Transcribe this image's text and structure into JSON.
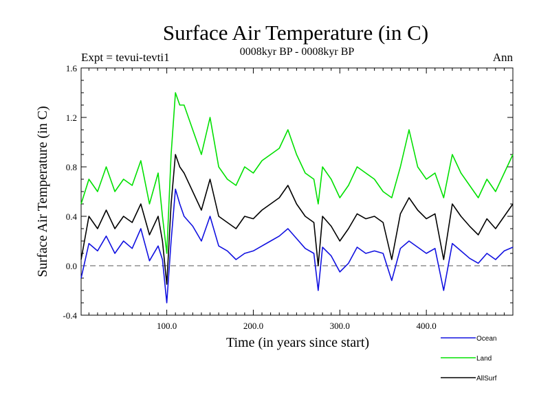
{
  "chart_data": {
    "type": "line",
    "title": "Surface Air Temperature (in C)",
    "subtitle": "0008kyr BP - 0008kyr BP",
    "left_label": "Expt = tevui-tevti1",
    "right_label": "Ann",
    "xlabel": "Time (in years since start)",
    "ylabel": "Surface Air Temperature (in C)",
    "xlim": [
      1,
      500
    ],
    "ylim": [
      -0.4,
      1.6
    ],
    "yticks": [
      -0.4,
      0.0,
      0.4,
      0.8,
      1.2,
      1.6
    ],
    "ytick_labels": [
      "-0.4",
      "0.0",
      "0.4",
      "0.8",
      "1.2",
      "1.6"
    ],
    "xticks": [
      100,
      200,
      300,
      400
    ],
    "xtick_labels": [
      "100.0",
      "200.0",
      "300.0",
      "400.0"
    ],
    "minor_x_step": 10,
    "minor_y_step": 0.1,
    "zero_line": {
      "value": 0.0,
      "style": "dashed"
    },
    "legend_position": "below-right",
    "series": [
      {
        "name": "Ocean",
        "color": "#1010e0",
        "x": [
          1,
          10,
          20,
          30,
          40,
          50,
          60,
          70,
          80,
          90,
          95,
          100,
          105,
          110,
          115,
          120,
          130,
          140,
          150,
          160,
          170,
          180,
          190,
          200,
          210,
          220,
          230,
          240,
          250,
          260,
          270,
          275,
          280,
          290,
          300,
          310,
          320,
          330,
          340,
          350,
          360,
          370,
          380,
          390,
          400,
          410,
          420,
          430,
          440,
          450,
          460,
          470,
          480,
          490,
          500
        ],
        "values": [
          -0.1,
          0.18,
          0.12,
          0.24,
          0.1,
          0.2,
          0.14,
          0.3,
          0.04,
          0.16,
          0.05,
          -0.3,
          0.2,
          0.62,
          0.5,
          0.4,
          0.32,
          0.2,
          0.4,
          0.16,
          0.12,
          0.05,
          0.1,
          0.12,
          0.16,
          0.2,
          0.24,
          0.3,
          0.22,
          0.14,
          0.1,
          -0.2,
          0.15,
          0.08,
          -0.05,
          0.02,
          0.15,
          0.1,
          0.12,
          0.1,
          -0.12,
          0.14,
          0.2,
          0.15,
          0.1,
          0.14,
          -0.2,
          0.18,
          0.12,
          0.06,
          0.02,
          0.1,
          0.05,
          0.12,
          0.15
        ]
      },
      {
        "name": "Land",
        "color": "#00e000",
        "x": [
          1,
          10,
          20,
          30,
          40,
          50,
          60,
          70,
          80,
          90,
          95,
          100,
          105,
          110,
          115,
          120,
          130,
          140,
          150,
          160,
          170,
          180,
          190,
          200,
          210,
          220,
          230,
          240,
          250,
          260,
          270,
          275,
          280,
          290,
          300,
          310,
          320,
          330,
          340,
          350,
          360,
          370,
          380,
          390,
          400,
          410,
          420,
          430,
          440,
          450,
          460,
          470,
          480,
          490,
          500
        ],
        "values": [
          0.5,
          0.7,
          0.6,
          0.8,
          0.6,
          0.7,
          0.65,
          0.85,
          0.5,
          0.75,
          0.4,
          0.1,
          0.9,
          1.4,
          1.3,
          1.3,
          1.1,
          0.9,
          1.2,
          0.8,
          0.7,
          0.65,
          0.8,
          0.75,
          0.85,
          0.9,
          0.95,
          1.1,
          0.9,
          0.75,
          0.7,
          0.5,
          0.8,
          0.7,
          0.55,
          0.65,
          0.8,
          0.75,
          0.7,
          0.6,
          0.55,
          0.8,
          1.1,
          0.8,
          0.7,
          0.75,
          0.55,
          0.9,
          0.75,
          0.65,
          0.55,
          0.7,
          0.6,
          0.75,
          0.9
        ]
      },
      {
        "name": "AllSurf",
        "color": "#000000",
        "x": [
          1,
          10,
          20,
          30,
          40,
          50,
          60,
          70,
          80,
          90,
          95,
          100,
          105,
          110,
          115,
          120,
          130,
          140,
          150,
          160,
          170,
          180,
          190,
          200,
          210,
          220,
          230,
          240,
          250,
          260,
          270,
          275,
          280,
          290,
          300,
          310,
          320,
          330,
          340,
          350,
          360,
          370,
          380,
          390,
          400,
          410,
          420,
          430,
          440,
          450,
          460,
          470,
          480,
          490,
          500
        ],
        "values": [
          0.05,
          0.4,
          0.3,
          0.45,
          0.3,
          0.4,
          0.35,
          0.5,
          0.25,
          0.4,
          0.2,
          -0.15,
          0.5,
          0.9,
          0.8,
          0.75,
          0.6,
          0.45,
          0.7,
          0.4,
          0.35,
          0.3,
          0.4,
          0.38,
          0.45,
          0.5,
          0.55,
          0.65,
          0.5,
          0.4,
          0.35,
          0.0,
          0.4,
          0.32,
          0.2,
          0.3,
          0.42,
          0.38,
          0.4,
          0.35,
          0.05,
          0.42,
          0.55,
          0.45,
          0.38,
          0.42,
          0.05,
          0.5,
          0.4,
          0.32,
          0.25,
          0.38,
          0.3,
          0.4,
          0.5
        ]
      }
    ]
  }
}
